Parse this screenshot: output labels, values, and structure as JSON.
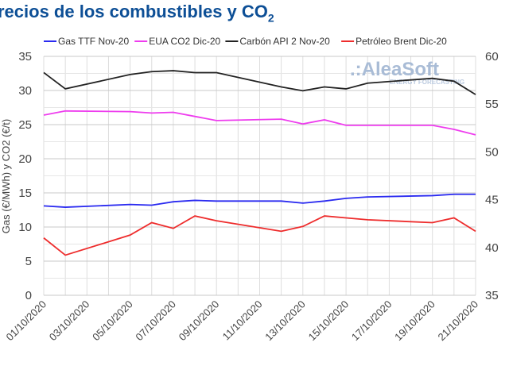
{
  "title": {
    "text": "recios de los combustibles y CO",
    "subscript": "2"
  },
  "logo": {
    "name": "AleaSoft",
    "tagline": "ENERGY FORECASTING"
  },
  "chart_data": {
    "type": "line",
    "title": "recios de los combustibles y CO2",
    "ylabel": "Gas (€/MWh) y CO2 (€/t)",
    "ylim": [
      0,
      35
    ],
    "y_ticks": [
      "0",
      "5",
      "10",
      "15",
      "20",
      "25",
      "30",
      "35"
    ],
    "y2lim": [
      35,
      60
    ],
    "y2_ticks": [
      "35",
      "40",
      "45",
      "50",
      "55",
      "60"
    ],
    "x_tick_labels": [
      "01/10/2020",
      "03/10/2020",
      "05/10/2020",
      "07/10/2020",
      "09/10/2020",
      "11/10/2020",
      "13/10/2020",
      "15/10/2020",
      "17/10/2020",
      "19/10/2020",
      "21/10/2020"
    ],
    "x_day_range": [
      1,
      21
    ],
    "grid": true,
    "legend_position": "top",
    "x_days": [
      1,
      2,
      5,
      6,
      7,
      8,
      9,
      12,
      13,
      14,
      15,
      16,
      19,
      20,
      21
    ],
    "series": [
      {
        "name": "Gas TTF Nov-20",
        "axis": "left",
        "color": "#2a2af0",
        "values": [
          13.1,
          12.9,
          13.3,
          13.2,
          13.7,
          13.9,
          13.8,
          13.8,
          13.5,
          13.8,
          14.2,
          14.4,
          14.6,
          14.8,
          14.8
        ]
      },
      {
        "name": "EUA CO2 Dic-20",
        "axis": "left",
        "color": "#ee3cee",
        "values": [
          26.4,
          27.0,
          26.9,
          26.7,
          26.8,
          26.2,
          25.6,
          25.8,
          25.1,
          25.7,
          24.9,
          24.9,
          24.9,
          24.3,
          23.5
        ]
      },
      {
        "name": "Carbón API 2 Nov-20",
        "axis": "right",
        "color": "#222222",
        "values": [
          58.3,
          56.6,
          58.1,
          58.4,
          58.5,
          58.3,
          58.3,
          56.8,
          56.4,
          56.8,
          56.6,
          57.2,
          57.7,
          57.4,
          56.0
        ]
      },
      {
        "name": "Petróleo Brent Dic-20",
        "axis": "right",
        "color": "#ee2c2c",
        "values": [
          41.0,
          39.2,
          41.3,
          42.6,
          42.0,
          43.3,
          42.8,
          41.7,
          42.2,
          43.3,
          43.1,
          42.9,
          42.6,
          43.1,
          41.7
        ]
      }
    ]
  }
}
